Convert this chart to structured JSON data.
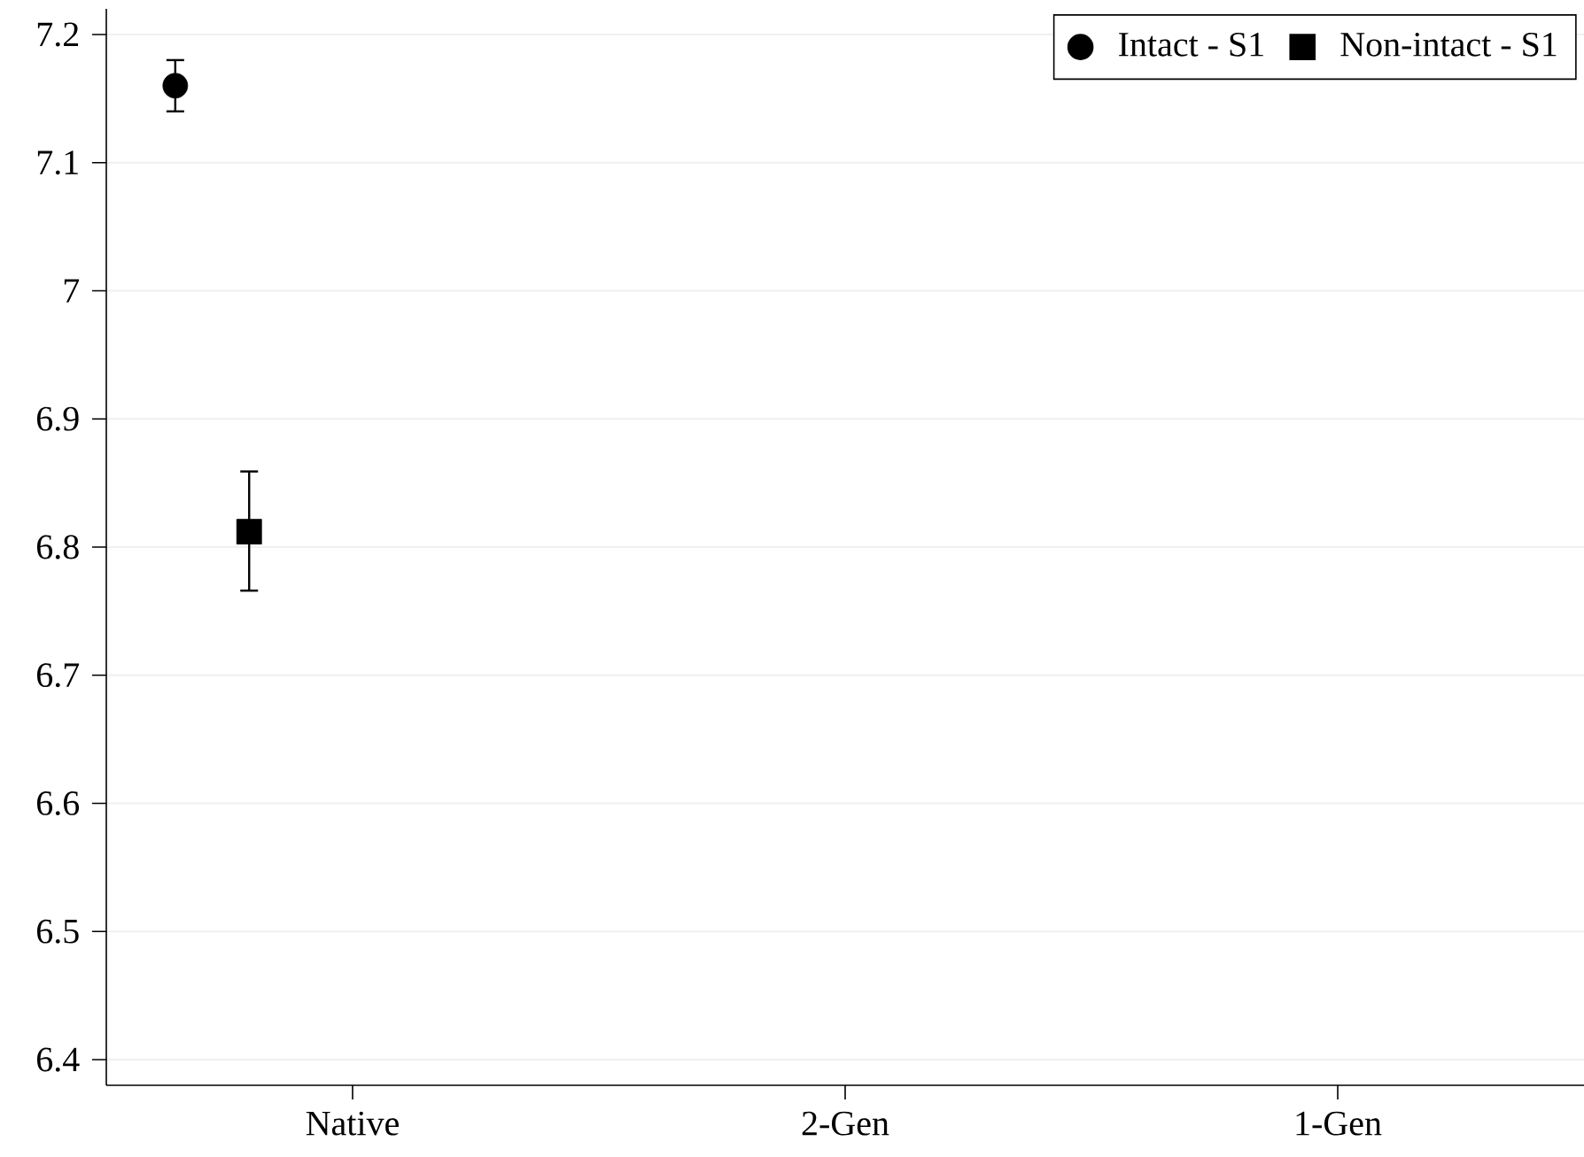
{
  "chart_data": {
    "type": "scatter",
    "categories": [
      "Native",
      "2-Gen",
      "1-Gen"
    ],
    "series": [
      {
        "name": "Intact - S1",
        "color": "#000000",
        "marker": "circle",
        "values": [
          7.16,
          null,
          null
        ],
        "errors": [
          [
            7.14,
            7.18
          ],
          null,
          null
        ]
      },
      {
        "name": "Non-intact - S1",
        "color": "#000000",
        "marker": "square",
        "values": [
          6.812,
          null,
          null
        ],
        "errors": [
          [
            6.766,
            6.859
          ],
          null,
          null
        ]
      }
    ],
    "ylim": [
      6.38,
      7.22
    ],
    "yticks": [
      6.4,
      6.5,
      6.6,
      6.7,
      6.8,
      6.9,
      7,
      7.1,
      7.2
    ],
    "grid": "y",
    "legend": "top right"
  }
}
